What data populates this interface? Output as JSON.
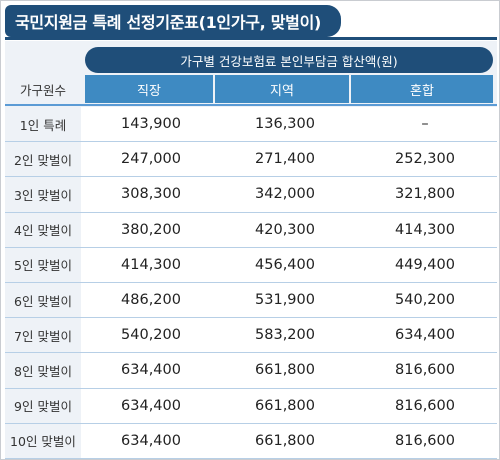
{
  "title": "국민지원금 특례 선정기준표(1인가구, 맞벌이)",
  "table": {
    "row_header": "가구원수",
    "group_header": "가구별 건강보험료 본인부담금 합산액(원)",
    "columns": [
      "직장",
      "지역",
      "혼합"
    ],
    "rows": [
      {
        "label": "1인 특례",
        "values": [
          "143,900",
          "136,300",
          "–"
        ]
      },
      {
        "label": "2인 맞벌이",
        "values": [
          "247,000",
          "271,400",
          "252,300"
        ]
      },
      {
        "label": "3인 맞벌이",
        "values": [
          "308,300",
          "342,000",
          "321,800"
        ]
      },
      {
        "label": "4인 맞벌이",
        "values": [
          "380,200",
          "420,300",
          "414,300"
        ]
      },
      {
        "label": "5인 맞벌이",
        "values": [
          "414,300",
          "456,400",
          "449,400"
        ]
      },
      {
        "label": "6인 맞벌이",
        "values": [
          "486,200",
          "531,900",
          "540,200"
        ]
      },
      {
        "label": "7인 맞벌이",
        "values": [
          "540,200",
          "583,200",
          "634,400"
        ]
      },
      {
        "label": "8인 맞벌이",
        "values": [
          "634,400",
          "661,800",
          "816,600"
        ]
      },
      {
        "label": "9인 맞벌이",
        "values": [
          "634,400",
          "661,800",
          "816,600"
        ]
      },
      {
        "label": "10인 맞벌이",
        "values": [
          "634,400",
          "661,800",
          "816,600"
        ]
      }
    ]
  },
  "colors": {
    "title_bg": "#1f4e79",
    "header_bg": "#3e8ac2",
    "row_label_bg": "#eef2f7",
    "row_line": "#b7cfe6"
  }
}
